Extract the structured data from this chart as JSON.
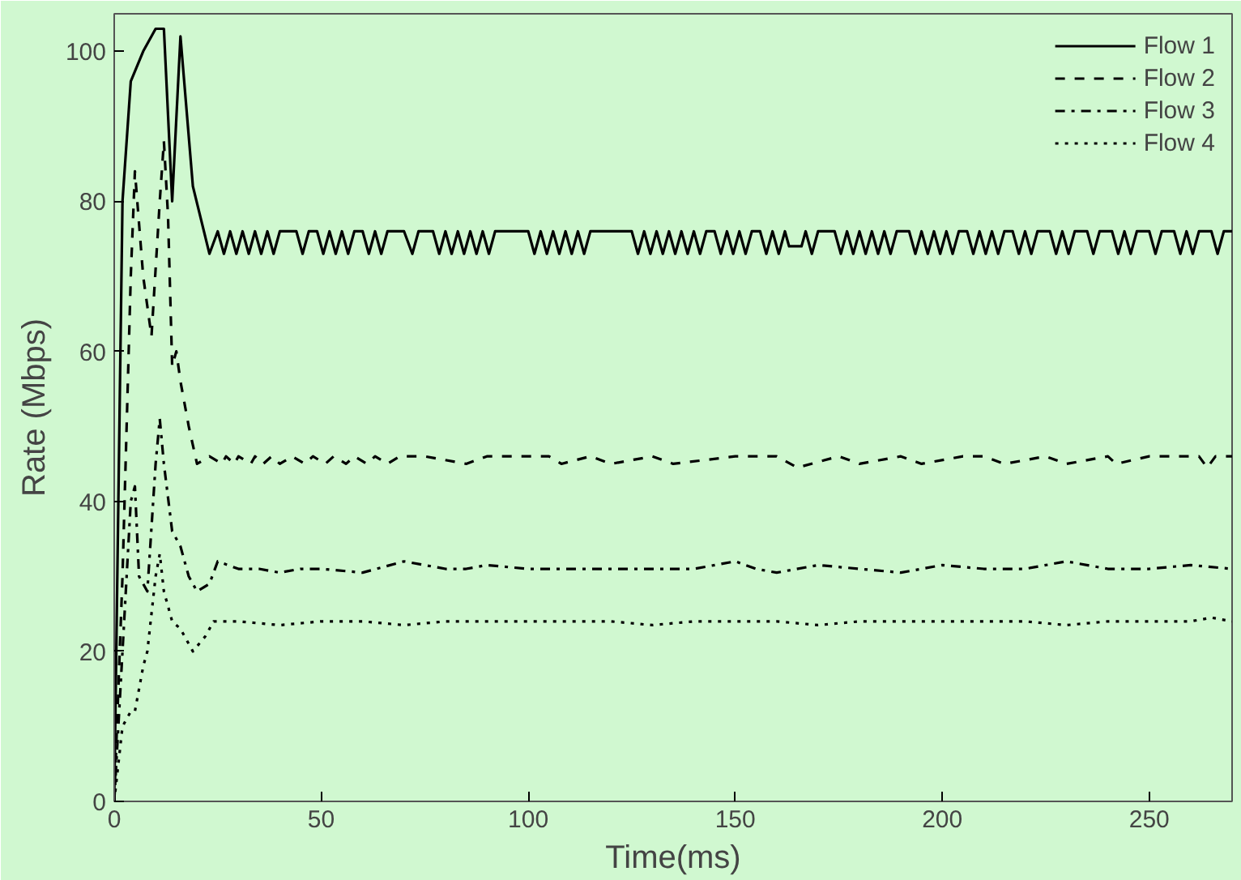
{
  "chart_data": {
    "type": "line",
    "xlabel": "Time(ms)",
    "ylabel": "Rate (Mbps)",
    "xlim": [
      0,
      270
    ],
    "ylim": [
      0,
      105
    ],
    "xticks": [
      0,
      50,
      100,
      150,
      200,
      250
    ],
    "yticks": [
      0,
      20,
      40,
      60,
      80,
      100
    ],
    "grid": false,
    "legend": "top right",
    "marker": "none",
    "series": [
      {
        "name": "Flow 1",
        "color": "#000000",
        "line_style": "solid",
        "x": [
          0,
          1,
          2,
          4,
          7,
          10,
          12,
          14,
          16,
          19,
          23,
          25,
          26.5,
          28,
          29.5,
          31,
          32.5,
          34,
          35.5,
          37,
          38.5,
          40,
          44,
          45.5,
          47,
          49,
          50.5,
          52,
          53.5,
          55,
          56.5,
          58,
          60,
          61.5,
          63,
          64.5,
          66,
          70,
          72,
          73.5,
          77,
          78.5,
          80,
          81.5,
          83,
          84.5,
          86,
          87.5,
          89,
          90.5,
          92,
          100,
          101.5,
          103,
          104.5,
          106,
          107.5,
          109,
          110.5,
          112,
          113.5,
          115,
          125,
          126.5,
          128,
          129.5,
          131,
          132.5,
          134,
          135.5,
          137,
          138.5,
          140,
          141.5,
          143,
          145,
          146.5,
          148,
          149.5,
          151,
          152.5,
          154,
          156,
          157.5,
          159,
          160.5,
          162,
          163,
          166,
          167,
          168.5,
          170,
          174,
          175.5,
          177,
          178.5,
          180,
          181.5,
          183,
          184.5,
          186,
          187.5,
          189,
          192,
          193.5,
          195,
          196.5,
          198,
          199.5,
          201,
          202.5,
          204,
          206,
          207.5,
          209,
          210.5,
          212,
          213.5,
          215,
          217,
          218.5,
          220,
          221.5,
          223,
          226,
          227.5,
          229,
          230.5,
          232,
          235,
          236.5,
          238,
          241,
          242.5,
          244,
          245.5,
          247,
          250,
          251.5,
          253,
          256,
          257.5,
          259,
          260.5,
          262,
          265,
          266.5,
          268,
          270
        ],
        "values": [
          0,
          40,
          80,
          96,
          100,
          103,
          103,
          80,
          102,
          82,
          73,
          76,
          73,
          76,
          73,
          76,
          73,
          76,
          73,
          76,
          73,
          76,
          76,
          73,
          76,
          76,
          73,
          76,
          73,
          76,
          73,
          76,
          76,
          73,
          76,
          73,
          76,
          76,
          73,
          76,
          76,
          73,
          76,
          73,
          76,
          73,
          76,
          73,
          76,
          73,
          76,
          76,
          73,
          76,
          73,
          76,
          73,
          76,
          73,
          76,
          73,
          76,
          76,
          73,
          76,
          73,
          76,
          73,
          76,
          73,
          76,
          73,
          76,
          73,
          76,
          76,
          73,
          76,
          73,
          76,
          73,
          76,
          76,
          73,
          76,
          73,
          76,
          74,
          74,
          76,
          73,
          76,
          76,
          73,
          76,
          73,
          76,
          73,
          76,
          73,
          76,
          73,
          76,
          76,
          73,
          76,
          73,
          76,
          73,
          76,
          73,
          76,
          76,
          73,
          76,
          73,
          76,
          73,
          76,
          76,
          73,
          76,
          73,
          76,
          76,
          73,
          76,
          73,
          76,
          76,
          73,
          76,
          76,
          73,
          76,
          73,
          76,
          76,
          73,
          76,
          76,
          73,
          76,
          73,
          76,
          76,
          73,
          76,
          76
        ]
      },
      {
        "name": "Flow 2",
        "color": "#000000",
        "line_style": "dashed",
        "x": [
          0,
          2,
          4,
          5,
          7,
          9,
          11,
          12,
          13,
          14,
          15,
          16,
          18,
          20,
          23,
          26,
          27,
          29,
          30,
          33,
          34,
          36,
          38,
          40,
          43,
          46,
          48,
          51,
          53,
          56,
          58,
          61,
          63,
          66,
          69,
          75,
          85,
          90,
          95,
          105,
          108,
          115,
          120,
          130,
          135,
          150,
          160,
          165,
          175,
          180,
          190,
          195,
          205,
          210,
          215,
          225,
          230,
          240,
          242,
          250,
          262,
          264,
          266,
          270
        ],
        "values": [
          0,
          30,
          70,
          84,
          70,
          62,
          80,
          88,
          78,
          58,
          60,
          56,
          50,
          45,
          46,
          45,
          46,
          45,
          46,
          45,
          46,
          45,
          46,
          45,
          46,
          45,
          46,
          45,
          46,
          45,
          46,
          45,
          46,
          45,
          46,
          46,
          45,
          46,
          46,
          46,
          45,
          46,
          45,
          46,
          45,
          46,
          46,
          44.5,
          46,
          45,
          46,
          45,
          46,
          46,
          45,
          46,
          45,
          46,
          45,
          46,
          46,
          44.5,
          46,
          46
        ]
      },
      {
        "name": "Flow 3",
        "color": "#000000",
        "line_style": "dashdot",
        "x": [
          0,
          2,
          4,
          5,
          6,
          8,
          10,
          11,
          12,
          14,
          16,
          18,
          20,
          23,
          25,
          30,
          35,
          40,
          45,
          50,
          60,
          70,
          80,
          85,
          90,
          100,
          110,
          120,
          130,
          140,
          150,
          155,
          160,
          170,
          180,
          190,
          200,
          210,
          220,
          230,
          240,
          250,
          260,
          270
        ],
        "values": [
          0,
          20,
          40,
          42,
          30,
          28,
          45,
          51,
          45,
          36,
          34,
          30,
          28,
          29,
          32,
          31,
          31,
          30.5,
          31,
          31,
          30.5,
          32,
          31,
          31,
          31.5,
          31,
          31,
          31,
          31,
          31,
          32,
          31,
          30.5,
          31.5,
          31,
          30.5,
          31.5,
          31,
          31,
          32,
          31,
          31,
          31.5,
          31
        ]
      },
      {
        "name": "Flow 4",
        "color": "#000000",
        "line_style": "dotted",
        "x": [
          0,
          2,
          4,
          5,
          7,
          8,
          10,
          11,
          12,
          14,
          16,
          19,
          22,
          24,
          30,
          40,
          50,
          60,
          70,
          80,
          90,
          100,
          110,
          120,
          130,
          140,
          150,
          160,
          170,
          180,
          190,
          200,
          210,
          220,
          230,
          240,
          250,
          260,
          265,
          270
        ],
        "values": [
          0,
          10,
          12,
          12,
          18,
          20,
          30,
          33,
          28,
          24,
          23,
          20,
          22,
          24,
          24,
          23.5,
          24,
          24,
          23.5,
          24,
          24,
          24,
          24,
          24,
          23.5,
          24,
          24,
          24,
          23.5,
          24,
          24,
          24,
          24,
          24,
          23.5,
          24,
          24,
          24,
          24.5,
          24
        ]
      }
    ]
  }
}
